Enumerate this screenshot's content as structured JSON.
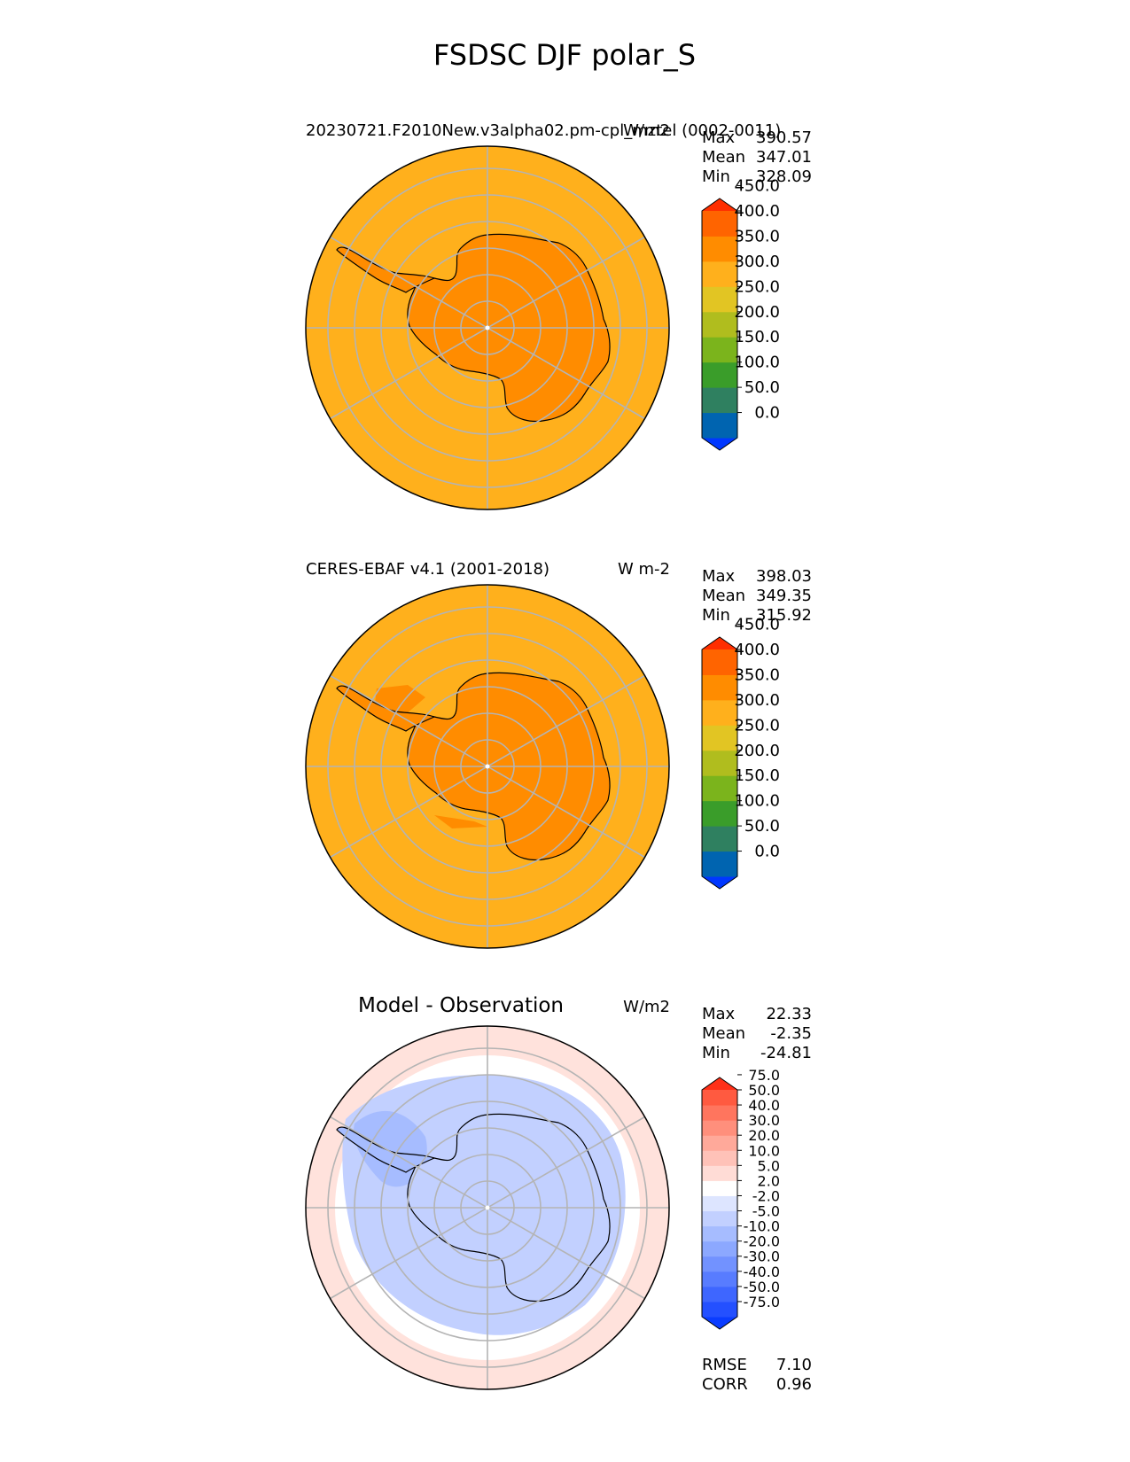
{
  "figure": {
    "title": "FSDSC DJF polar_S"
  },
  "panels": [
    {
      "id": "model",
      "left_title": "20230721.F2010New.v3alpha02.pm-cpl_mztel (0002-0011)",
      "right_title": "W/m2",
      "center_title": "",
      "stats": {
        "max_label": "Max",
        "max": "390.57",
        "mean_label": "Mean",
        "mean": "347.01",
        "min_label": "Min",
        "min": "328.09"
      }
    },
    {
      "id": "obs",
      "left_title": "CERES-EBAF v4.1 (2001-2018)",
      "right_title": "W m-2",
      "center_title": "",
      "stats": {
        "max_label": "Max",
        "max": "398.03",
        "mean_label": "Mean",
        "mean": "349.35",
        "min_label": "Min",
        "min": "315.92"
      }
    },
    {
      "id": "diff",
      "left_title": "",
      "right_title": "W/m2",
      "center_title": "Model - Observation",
      "stats": {
        "max_label": "Max",
        "max": "22.33",
        "mean_label": "Mean",
        "mean": "-2.35",
        "min_label": "Min",
        "min": "-24.81"
      },
      "metrics": {
        "rmse_label": "RMSE",
        "rmse": "7.10",
        "corr_label": "CORR",
        "corr": "0.96"
      }
    }
  ],
  "chart_data": [
    {
      "type": "heatmap",
      "projection": "south-polar-stereographic",
      "title": "20230721.F2010New.v3alpha02.pm-cpl_mztel (0002-0011)",
      "units": "W/m2",
      "regions": {
        "ocean": 325,
        "antarctica": 375
      },
      "colorbar": {
        "ticks": [
          "0.0",
          "50.0",
          "100.0",
          "150.0",
          "200.0",
          "250.0",
          "300.0",
          "350.0",
          "400.0",
          "450.0"
        ],
        "colors": [
          "#0037ff",
          "#0064b0",
          "#2f8060",
          "#3a9d2a",
          "#7bb41c",
          "#b0bd1e",
          "#e2c523",
          "#ffb01c",
          "#ff8c00",
          "#ff6400",
          "#ff2e00"
        ],
        "extend": "both"
      },
      "max": 390.57,
      "mean": 347.01,
      "min": 328.09
    },
    {
      "type": "heatmap",
      "projection": "south-polar-stereographic",
      "title": "CERES-EBAF v4.1 (2001-2018)",
      "units": "W m-2",
      "regions": {
        "ocean": 325,
        "antarctica": 375
      },
      "colorbar": {
        "ticks": [
          "0.0",
          "50.0",
          "100.0",
          "150.0",
          "200.0",
          "250.0",
          "300.0",
          "350.0",
          "400.0",
          "450.0"
        ],
        "colors": [
          "#0037ff",
          "#0064b0",
          "#2f8060",
          "#3a9d2a",
          "#7bb41c",
          "#b0bd1e",
          "#e2c523",
          "#ffb01c",
          "#ff8c00",
          "#ff6400",
          "#ff2e00"
        ],
        "extend": "both"
      },
      "max": 398.03,
      "mean": 349.35,
      "min": 315.92
    },
    {
      "type": "heatmap",
      "projection": "south-polar-stereographic",
      "title": "Model - Observation",
      "units": "W/m2",
      "regions": {
        "outer_ocean": 3.5,
        "inner_ocean": 0,
        "antarctica": -7.5
      },
      "colorbar": {
        "ticks": [
          "-75.0",
          "-50.0",
          "-40.0",
          "-30.0",
          "-20.0",
          "-10.0",
          "-5.0",
          "-2.0",
          "2.0",
          "5.0",
          "10.0",
          "20.0",
          "30.0",
          "40.0",
          "50.0",
          "75.0"
        ],
        "colors": [
          "#0a3cff",
          "#2450ff",
          "#3e66ff",
          "#587cff",
          "#7292ff",
          "#8ca8ff",
          "#a6bcff",
          "#c2d0ff",
          "#dde5ff",
          "#ffffff",
          "#ffdcd6",
          "#ffc2b8",
          "#ffa99a",
          "#ff8f7c",
          "#ff755e",
          "#ff5a40",
          "#ff3018"
        ],
        "extend": "both"
      },
      "max": 22.33,
      "mean": -2.35,
      "min": -24.81,
      "rmse": 7.1,
      "corr": 0.96
    }
  ]
}
